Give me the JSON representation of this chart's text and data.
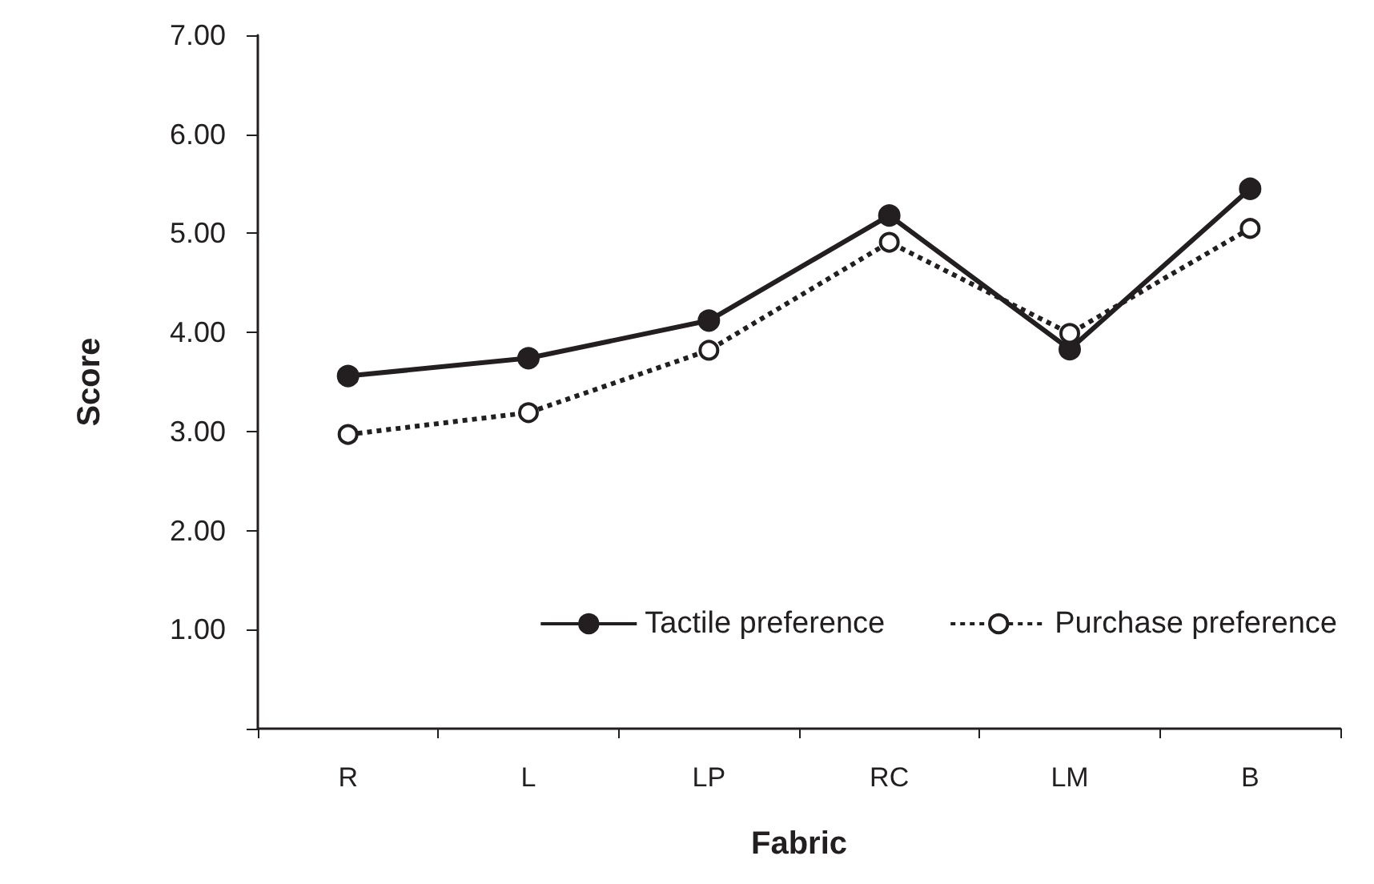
{
  "chart_data": {
    "type": "line",
    "xlabel": "Fabric",
    "ylabel": "Score",
    "categories": [
      "R",
      "L",
      "LP",
      "RC",
      "LM",
      "B"
    ],
    "series": [
      {
        "name": "Tactile preference",
        "color": "#231f20",
        "line_style": "solid",
        "values": [
          3.56,
          3.74,
          4.12,
          5.18,
          3.83,
          5.45
        ]
      },
      {
        "name": "Purchase preference",
        "color": "#231f20",
        "line_style": "dotted",
        "values": [
          2.97,
          3.19,
          3.82,
          4.91,
          3.99,
          5.05
        ]
      }
    ],
    "ylim": [
      0,
      7
    ],
    "yticks": [
      {
        "value": 0,
        "label": null
      },
      {
        "value": 1,
        "label": "1.00"
      },
      {
        "value": 2,
        "label": "2.00"
      },
      {
        "value": 3,
        "label": "3.00"
      },
      {
        "value": 4,
        "label": "4.00"
      },
      {
        "value": 5,
        "label": "5.00"
      },
      {
        "value": 6,
        "label": "6.00"
      },
      {
        "value": 7,
        "label": "7.00"
      }
    ],
    "grid": false,
    "legend": "bottom right",
    "marker": "circle"
  }
}
